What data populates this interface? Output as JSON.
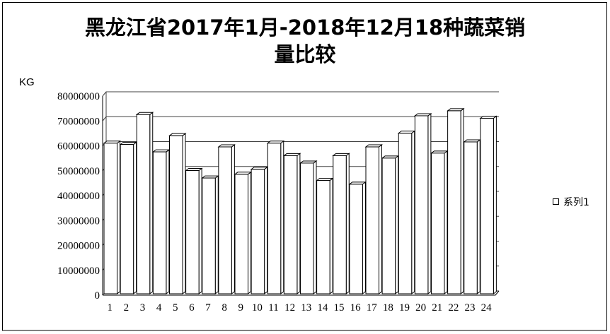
{
  "chart_data": {
    "type": "bar",
    "title": "黑龙江省2017年1月-2018年12月18种蔬菜销\n量比较",
    "ylabel": "KG",
    "categories": [
      "1",
      "2",
      "3",
      "4",
      "5",
      "6",
      "7",
      "8",
      "9",
      "10",
      "11",
      "12",
      "13",
      "14",
      "15",
      "16",
      "17",
      "18",
      "19",
      "20",
      "21",
      "22",
      "23",
      "24"
    ],
    "series": [
      {
        "name": "系列1",
        "values": [
          60500000,
          60000000,
          72000000,
          57000000,
          63500000,
          49500000,
          46500000,
          59000000,
          48000000,
          50000000,
          60500000,
          55500000,
          52500000,
          45500000,
          55500000,
          44000000,
          59000000,
          54500000,
          64500000,
          71500000,
          56500000,
          73500000,
          61000000,
          70500000
        ]
      }
    ],
    "ylim": [
      0,
      80000000
    ],
    "y_ticks": [
      0,
      10000000,
      20000000,
      30000000,
      40000000,
      50000000,
      60000000,
      70000000,
      80000000
    ],
    "grid": true,
    "legend": "right",
    "colors": {
      "bar_fill": "#ffffff",
      "bar_stroke": "#000000",
      "gridline": "#404040"
    }
  }
}
